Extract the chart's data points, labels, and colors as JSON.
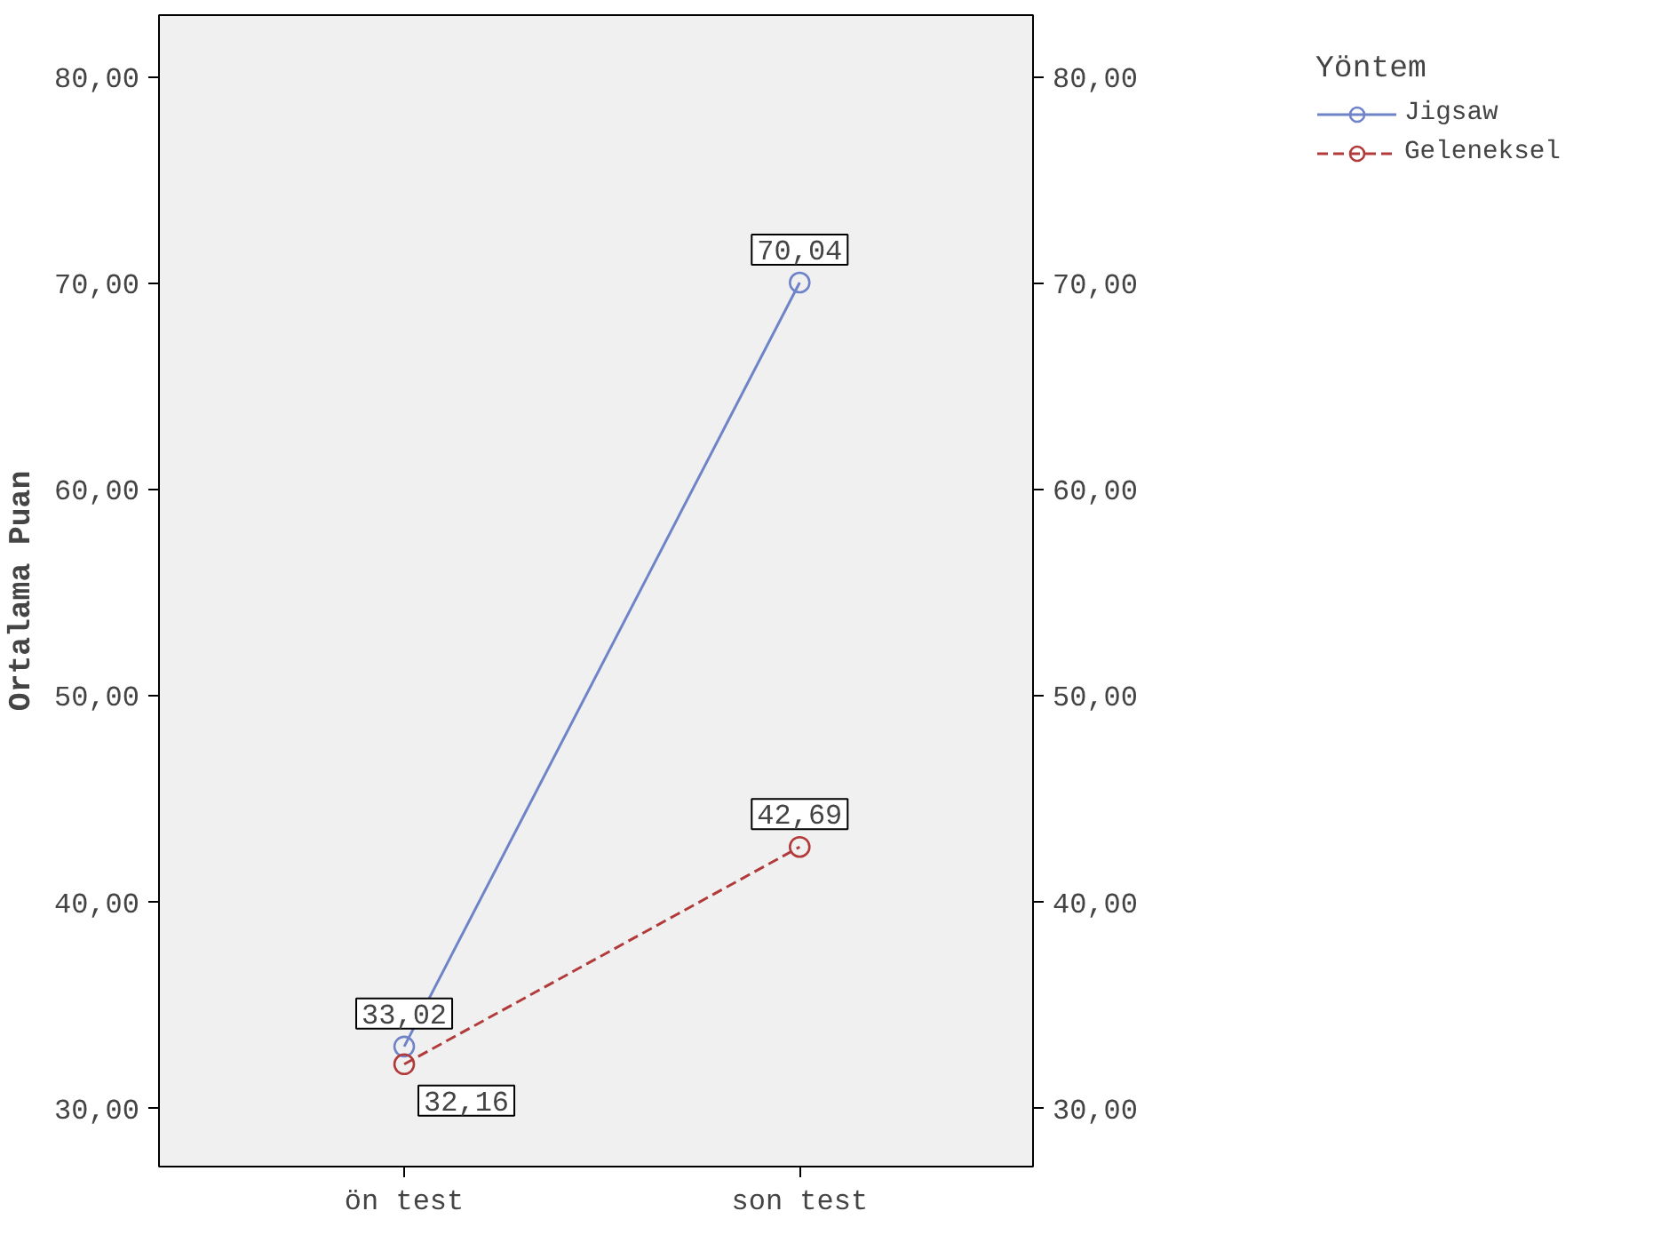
{
  "chart_data": {
    "type": "line",
    "ylabel": "Ortalama Puan",
    "legend_title": "Yöntem",
    "categories": [
      "ön test",
      "son test"
    ],
    "series": [
      {
        "name": "Jigsaw",
        "color": "#6f83c8",
        "values": [
          33.02,
          70.04
        ],
        "value_labels": [
          "33,02",
          "70,04"
        ],
        "line_style": "solid"
      },
      {
        "name": "Geleneksel",
        "color": "#b23a3a",
        "values": [
          32.16,
          42.69
        ],
        "value_labels": [
          "32,16",
          "42,69"
        ],
        "line_style": "dashed"
      }
    ],
    "ylim": [
      27.2,
      83.0
    ],
    "yticks": [
      {
        "value": 30,
        "label": "30,00"
      },
      {
        "value": 40,
        "label": "40,00"
      },
      {
        "value": 50,
        "label": "50,00"
      },
      {
        "value": 60,
        "label": "60,00"
      },
      {
        "value": 70,
        "label": "70,00"
      },
      {
        "value": 80,
        "label": "80,00"
      }
    ],
    "y2lim": [
      27.2,
      83.0
    ],
    "y2ticks": [
      {
        "value": 30,
        "label": "30,00"
      },
      {
        "value": 40,
        "label": "40,00"
      },
      {
        "value": 50,
        "label": "50,00"
      },
      {
        "value": 60,
        "label": "60,00"
      },
      {
        "value": 70,
        "label": "70,00"
      },
      {
        "value": 80,
        "label": "80,00"
      }
    ],
    "marker": "circle",
    "grid": false,
    "legend": "right"
  }
}
